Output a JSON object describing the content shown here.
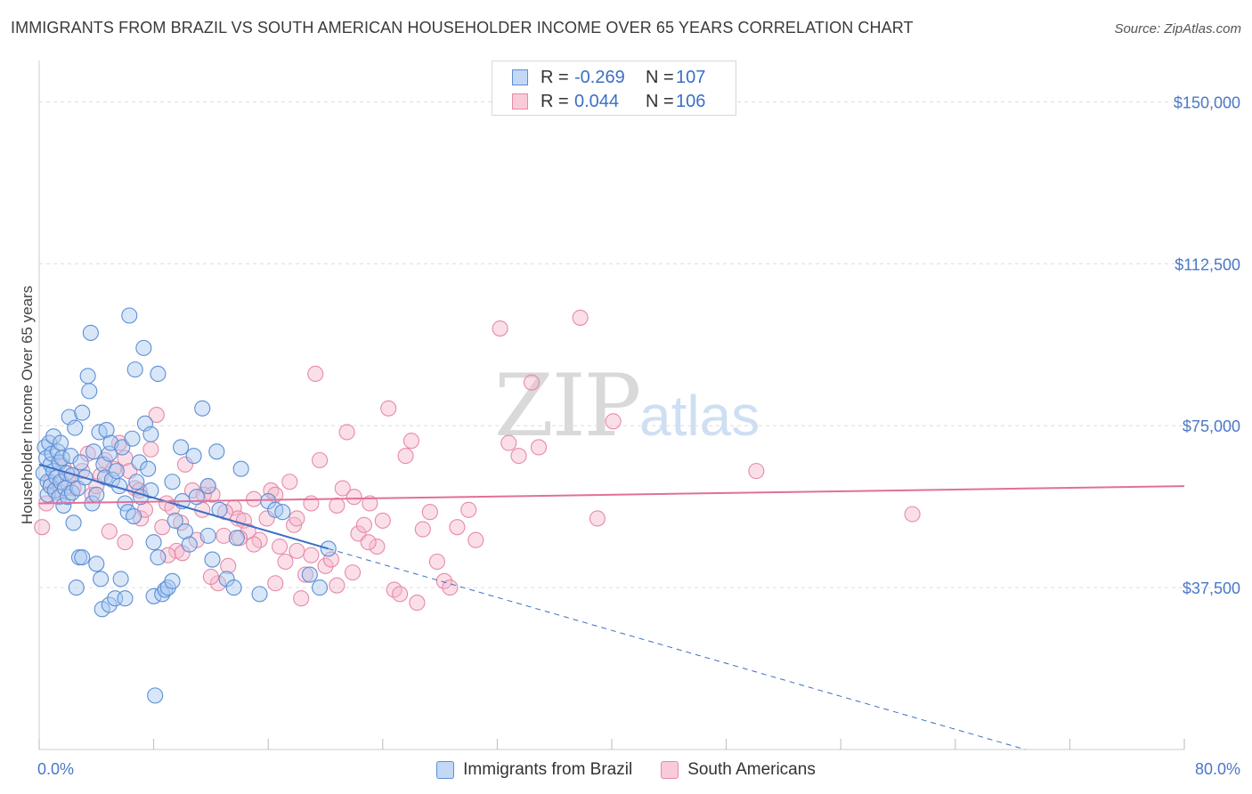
{
  "header": {
    "title": "IMMIGRANTS FROM BRAZIL VS SOUTH AMERICAN HOUSEHOLDER INCOME OVER 65 YEARS CORRELATION CHART",
    "source": "Source: ZipAtlas.com"
  },
  "watermark": {
    "zip": "ZIP",
    "atlas": "atlas"
  },
  "legend_top": {
    "rows": [
      {
        "label": "R =",
        "r_value": "-0.269",
        "n_label": "N =",
        "n_value": "107"
      },
      {
        "label": "R =",
        "r_value": "0.044",
        "n_label": "N =",
        "n_value": "106"
      }
    ]
  },
  "legend_bottom": {
    "items": [
      "Immigrants from Brazil",
      "South Americans"
    ]
  },
  "colors": {
    "blue_fill": "#a8c8ef",
    "blue_stroke": "#5b8fd6",
    "blue_line": "#3a6fc6",
    "pink_fill": "#f6b8cc",
    "pink_stroke": "#e58aa8",
    "pink_line": "#e0709a",
    "tick_text": "#4a78c8",
    "grid": "#dddddd"
  },
  "chart_data": {
    "type": "scatter",
    "ylabel": "Householder Income Over 65 years",
    "xlim": [
      0,
      80
    ],
    "ylim": [
      0,
      157500
    ],
    "x_tick_labels": [
      {
        "value": 0,
        "label": "0.0%"
      },
      {
        "value": 80,
        "label": "80.0%"
      }
    ],
    "y_ticks": [
      {
        "value": 37500,
        "label": "$37,500"
      },
      {
        "value": 75000,
        "label": "$75,000"
      },
      {
        "value": 112500,
        "label": "$112,500"
      },
      {
        "value": 150000,
        "label": "$150,000"
      }
    ],
    "grid": "horizontal dashed",
    "series": [
      {
        "name": "Immigrants from Brazil",
        "trend": {
          "x0": 0,
          "y0": 66000,
          "x1": 20.2,
          "y1": 46500,
          "dashed_to_x": 68.9,
          "dashed_to_y": 0
        },
        "points": [
          [
            0.3,
            64000
          ],
          [
            0.4,
            70000
          ],
          [
            0.5,
            67500
          ],
          [
            0.6,
            62000
          ],
          [
            0.6,
            59000
          ],
          [
            0.7,
            71000
          ],
          [
            0.8,
            66000
          ],
          [
            0.8,
            61000
          ],
          [
            0.9,
            68500
          ],
          [
            1.0,
            72500
          ],
          [
            1.0,
            64500
          ],
          [
            1.1,
            60000
          ],
          [
            1.2,
            63000
          ],
          [
            1.3,
            69000
          ],
          [
            1.4,
            66500
          ],
          [
            1.4,
            58500
          ],
          [
            1.5,
            71000
          ],
          [
            1.5,
            62000
          ],
          [
            1.6,
            67500
          ],
          [
            1.7,
            56500
          ],
          [
            1.8,
            60500
          ],
          [
            1.9,
            64000
          ],
          [
            2.0,
            58500
          ],
          [
            2.1,
            77000
          ],
          [
            2.2,
            68000
          ],
          [
            2.3,
            63500
          ],
          [
            2.3,
            59500
          ],
          [
            2.4,
            52500
          ],
          [
            2.5,
            74500
          ],
          [
            2.6,
            37500
          ],
          [
            2.7,
            60500
          ],
          [
            2.8,
            44500
          ],
          [
            2.9,
            66500
          ],
          [
            3.0,
            78000
          ],
          [
            3.0,
            44500
          ],
          [
            3.2,
            63000
          ],
          [
            3.4,
            86500
          ],
          [
            3.5,
            83000
          ],
          [
            3.6,
            96500
          ],
          [
            3.7,
            57000
          ],
          [
            3.8,
            69000
          ],
          [
            4.0,
            59000
          ],
          [
            4.0,
            43000
          ],
          [
            4.2,
            73500
          ],
          [
            4.3,
            39500
          ],
          [
            4.4,
            32500
          ],
          [
            4.5,
            66000
          ],
          [
            4.6,
            63000
          ],
          [
            4.7,
            74000
          ],
          [
            4.9,
            68500
          ],
          [
            4.9,
            33500
          ],
          [
            5.0,
            71000
          ],
          [
            5.1,
            62500
          ],
          [
            5.3,
            35000
          ],
          [
            5.4,
            64500
          ],
          [
            5.6,
            61000
          ],
          [
            5.7,
            39500
          ],
          [
            5.8,
            70000
          ],
          [
            6.0,
            35000
          ],
          [
            6.0,
            57000
          ],
          [
            6.2,
            55000
          ],
          [
            6.3,
            100500
          ],
          [
            6.5,
            72000
          ],
          [
            6.6,
            54000
          ],
          [
            6.7,
            88000
          ],
          [
            6.8,
            62000
          ],
          [
            7.0,
            66500
          ],
          [
            7.1,
            58500
          ],
          [
            7.3,
            93000
          ],
          [
            7.4,
            75500
          ],
          [
            7.6,
            65000
          ],
          [
            7.8,
            73000
          ],
          [
            7.8,
            60000
          ],
          [
            8.0,
            48000
          ],
          [
            8.0,
            35500
          ],
          [
            8.1,
            12500
          ],
          [
            8.3,
            44500
          ],
          [
            8.3,
            87000
          ],
          [
            8.6,
            36000
          ],
          [
            8.8,
            37000
          ],
          [
            9.0,
            37500
          ],
          [
            9.3,
            62000
          ],
          [
            9.3,
            39000
          ],
          [
            9.5,
            53000
          ],
          [
            9.9,
            70000
          ],
          [
            10.0,
            57500
          ],
          [
            10.2,
            50500
          ],
          [
            10.5,
            47500
          ],
          [
            10.8,
            68000
          ],
          [
            11.0,
            58500
          ],
          [
            11.4,
            79000
          ],
          [
            11.8,
            49500
          ],
          [
            11.8,
            61000
          ],
          [
            12.1,
            44000
          ],
          [
            12.4,
            69000
          ],
          [
            12.6,
            55500
          ],
          [
            13.1,
            39500
          ],
          [
            13.6,
            37500
          ],
          [
            13.8,
            49000
          ],
          [
            14.1,
            65000
          ],
          [
            15.4,
            36000
          ],
          [
            16.0,
            57500
          ],
          [
            16.5,
            55500
          ],
          [
            17.0,
            55000
          ],
          [
            18.9,
            40500
          ],
          [
            19.6,
            37500
          ],
          [
            20.2,
            46500
          ]
        ]
      },
      {
        "name": "South Americans",
        "trend": {
          "x0": 0,
          "y0": 57000,
          "x1": 80,
          "y1": 61000
        },
        "points": [
          [
            0.2,
            51500
          ],
          [
            0.5,
            57000
          ],
          [
            0.8,
            62000
          ],
          [
            1.2,
            59500
          ],
          [
            1.7,
            65500
          ],
          [
            2.0,
            62500
          ],
          [
            2.4,
            60500
          ],
          [
            3.0,
            64500
          ],
          [
            3.4,
            68500
          ],
          [
            3.7,
            59000
          ],
          [
            4.0,
            61000
          ],
          [
            4.3,
            63500
          ],
          [
            4.6,
            67000
          ],
          [
            4.9,
            50500
          ],
          [
            5.2,
            65000
          ],
          [
            5.6,
            71000
          ],
          [
            6.0,
            67500
          ],
          [
            6.3,
            64500
          ],
          [
            6.7,
            60500
          ],
          [
            7.1,
            53500
          ],
          [
            7.4,
            55500
          ],
          [
            7.8,
            69500
          ],
          [
            8.2,
            77500
          ],
          [
            8.6,
            51500
          ],
          [
            8.9,
            57000
          ],
          [
            9.3,
            56000
          ],
          [
            9.6,
            46000
          ],
          [
            9.9,
            52500
          ],
          [
            10.2,
            66000
          ],
          [
            10.7,
            60000
          ],
          [
            11.0,
            48500
          ],
          [
            11.4,
            55500
          ],
          [
            11.8,
            61000
          ],
          [
            12.1,
            59000
          ],
          [
            12.5,
            38500
          ],
          [
            12.9,
            49500
          ],
          [
            13.2,
            42500
          ],
          [
            13.6,
            56000
          ],
          [
            13.9,
            53500
          ],
          [
            14.3,
            53000
          ],
          [
            14.6,
            50500
          ],
          [
            15.0,
            58000
          ],
          [
            15.4,
            48500
          ],
          [
            15.9,
            53500
          ],
          [
            16.2,
            60000
          ],
          [
            16.5,
            38500
          ],
          [
            16.8,
            47000
          ],
          [
            17.2,
            43500
          ],
          [
            17.5,
            62000
          ],
          [
            17.8,
            52000
          ],
          [
            18.0,
            46000
          ],
          [
            18.3,
            35000
          ],
          [
            18.6,
            40500
          ],
          [
            19.0,
            57000
          ],
          [
            19.3,
            87000
          ],
          [
            19.6,
            67000
          ],
          [
            20.0,
            42500
          ],
          [
            20.4,
            44000
          ],
          [
            20.8,
            56500
          ],
          [
            21.2,
            60500
          ],
          [
            21.5,
            73500
          ],
          [
            21.9,
            41000
          ],
          [
            22.3,
            50000
          ],
          [
            22.7,
            52000
          ],
          [
            23.1,
            57000
          ],
          [
            23.6,
            47000
          ],
          [
            24.0,
            53000
          ],
          [
            24.4,
            79000
          ],
          [
            24.8,
            37000
          ],
          [
            25.2,
            36000
          ],
          [
            25.6,
            68000
          ],
          [
            26.0,
            71500
          ],
          [
            26.4,
            34000
          ],
          [
            26.8,
            51000
          ],
          [
            27.3,
            55000
          ],
          [
            27.8,
            43500
          ],
          [
            28.3,
            39000
          ],
          [
            28.7,
            37500
          ],
          [
            29.2,
            51500
          ],
          [
            30.0,
            55500
          ],
          [
            30.5,
            48500
          ],
          [
            32.2,
            97500
          ],
          [
            32.8,
            71000
          ],
          [
            33.5,
            68000
          ],
          [
            34.4,
            85000
          ],
          [
            34.9,
            70000
          ],
          [
            37.8,
            100000
          ],
          [
            39.0,
            53500
          ],
          [
            40.1,
            76000
          ],
          [
            50.1,
            64500
          ],
          [
            61.0,
            54500
          ],
          [
            7.0,
            60000
          ],
          [
            9.0,
            45000
          ],
          [
            13.0,
            55000
          ],
          [
            15.0,
            47500
          ],
          [
            18.0,
            53500
          ],
          [
            20.8,
            38000
          ],
          [
            22.0,
            58500
          ],
          [
            12.0,
            40000
          ],
          [
            14.0,
            49000
          ],
          [
            16.5,
            59000
          ],
          [
            19.0,
            45000
          ],
          [
            23.0,
            48000
          ],
          [
            10.0,
            45500
          ],
          [
            6.0,
            48000
          ],
          [
            11.5,
            59000
          ]
        ]
      }
    ]
  }
}
